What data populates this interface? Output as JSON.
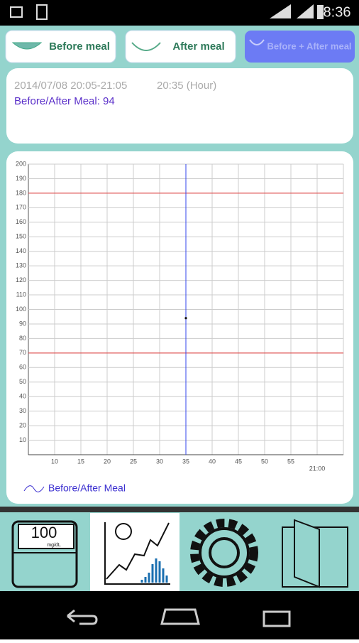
{
  "status_bar": {
    "time": "8:36"
  },
  "tabs": [
    "Before meal",
    "After meal",
    "Before + After meal"
  ],
  "info": {
    "range": "2014/07/08 20:05-21:05",
    "hour": "20:35 (Hour)",
    "reading": "Before/After Meal: 94"
  },
  "chart_data": {
    "type": "scatter",
    "series": [
      {
        "name": "Before/After Meal",
        "color": "#3b2fd0",
        "x": [
          35
        ],
        "values": [
          94
        ]
      }
    ],
    "xlim": [
      5,
      65
    ],
    "xticks": [
      10,
      15,
      20,
      25,
      30,
      35,
      40,
      45,
      50,
      55,
      {
        "value": 60,
        "label": "21:00"
      }
    ],
    "ylim": [
      0,
      200
    ],
    "yticks": [
      10,
      20,
      30,
      40,
      50,
      60,
      70,
      80,
      90,
      100,
      110,
      120,
      130,
      140,
      150,
      160,
      170,
      180,
      190,
      200
    ],
    "grid": true,
    "reference_lines": [
      180,
      70
    ],
    "reference_color": "#e33b3b",
    "marker_x": 35,
    "marker_color": "#3344ee"
  },
  "nav": {
    "meter_value": "100",
    "meter_unit": "mg/dL"
  }
}
